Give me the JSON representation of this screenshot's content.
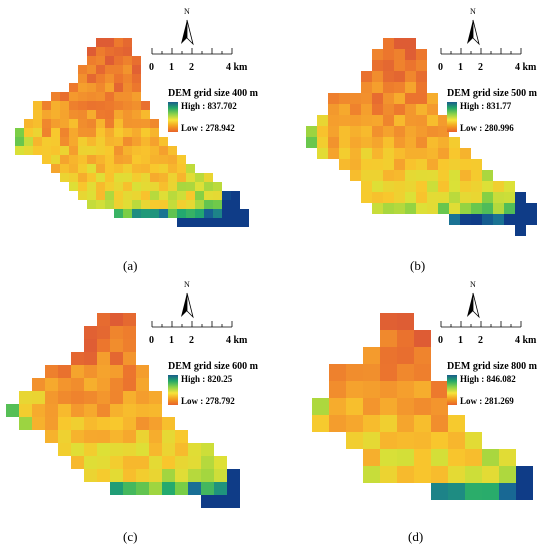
{
  "north_label": "N",
  "scale_labels": [
    "0",
    "1",
    "2",
    "4 km"
  ],
  "panels": [
    {
      "caption": "(a)",
      "title": "DEM grid size 400 m",
      "high": "High : 837.702",
      "low": "Low : 278.942"
    },
    {
      "caption": "(b)",
      "title": "DEM grid size 500 m",
      "high": "High : 831.77",
      "low": "Low : 280.996"
    },
    {
      "caption": "(c)",
      "title": "DEM grid size 600 m",
      "high": "High : 820.25",
      "low": "Low : 278.792"
    },
    {
      "caption": "(d)",
      "title": "DEM grid size 800 m",
      "high": "High : 846.082",
      "low": "Low : 281.269"
    }
  ],
  "colors": {
    "high": "#e8622a",
    "mid": "#f4c230",
    "low": "#0f3f87",
    "legend_ramp": [
      "#1a5c8c",
      "#23a868",
      "#8ad24a",
      "#f6e43a",
      "#f4a020",
      "#e8622a"
    ]
  }
}
